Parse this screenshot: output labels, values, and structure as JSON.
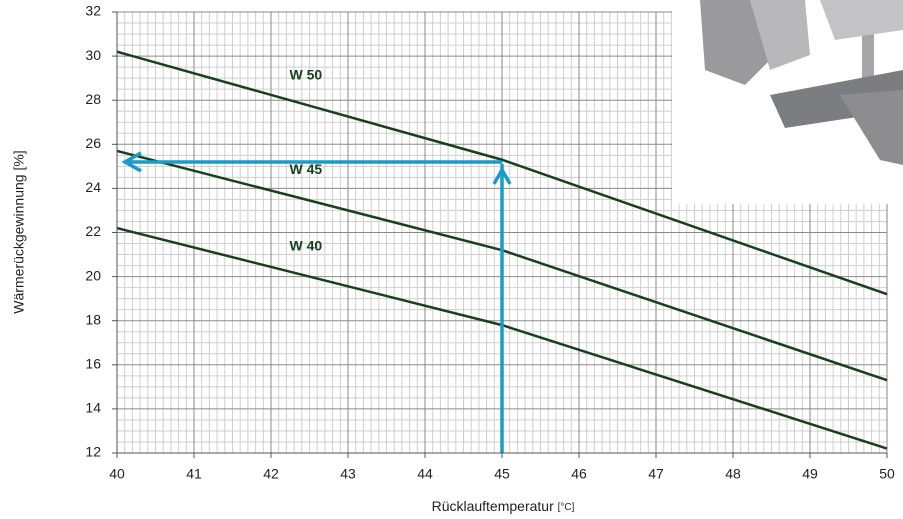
{
  "chart_data": {
    "type": "line",
    "x_label": "Rücklauftemperatur",
    "x_unit": "[°C]",
    "y_label": "Wärmerückgewinnung [%]",
    "x": [
      40,
      45,
      50
    ],
    "series": [
      {
        "name": "W 50",
        "color": "#17401c",
        "values": [
          30.2,
          25.3,
          19.2
        ]
      },
      {
        "name": "W 45",
        "color": "#17401c",
        "values": [
          25.7,
          21.2,
          15.3
        ]
      },
      {
        "name": "W 40",
        "color": "#17401c",
        "values": [
          22.2,
          17.8,
          12.2
        ]
      }
    ],
    "xlim": [
      40,
      50
    ],
    "xticks": [
      40,
      41,
      42,
      43,
      44,
      45,
      46,
      47,
      48,
      49,
      50
    ],
    "ylim": [
      12,
      32
    ],
    "yticks": [
      12,
      14,
      16,
      18,
      20,
      22,
      24,
      26,
      28,
      30,
      32
    ],
    "grid": true,
    "minor_grid": true,
    "reading": {
      "x": 45,
      "y": 25.2,
      "color": "#1a9bc9"
    }
  }
}
